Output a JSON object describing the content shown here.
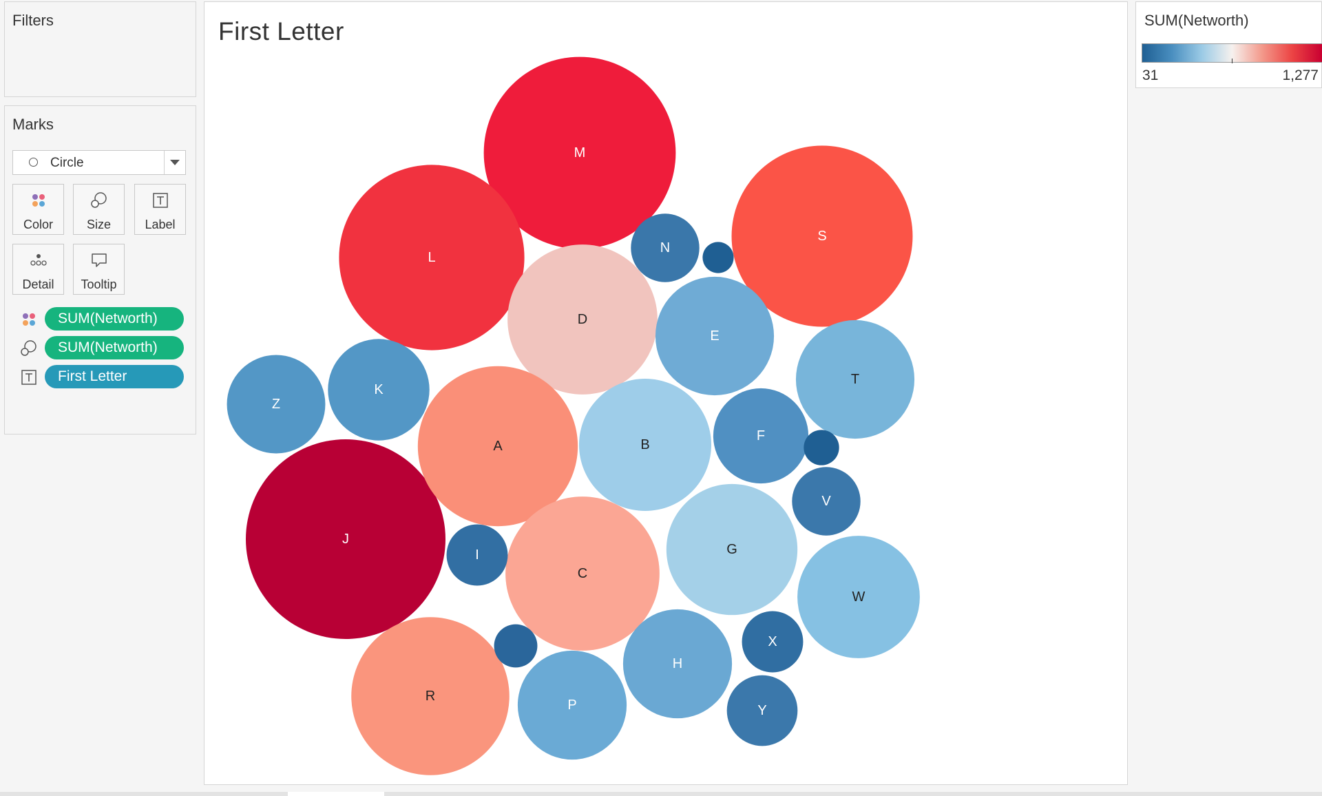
{
  "filters": {
    "title": "Filters"
  },
  "marks": {
    "title": "Marks",
    "mark_type": "Circle",
    "cards": [
      {
        "label": "Color",
        "icon": "color-dots-icon"
      },
      {
        "label": "Size",
        "icon": "size-bubbles-icon"
      },
      {
        "label": "Label",
        "icon": "label-text-icon"
      },
      {
        "label": "Detail",
        "icon": "detail-dots-icon"
      },
      {
        "label": "Tooltip",
        "icon": "tooltip-bubble-icon"
      }
    ],
    "pills": [
      {
        "text": "SUM(Networth)",
        "icon": "color-dots-icon",
        "color": "#16b47e"
      },
      {
        "text": "SUM(Networth)",
        "icon": "size-bubbles-icon",
        "color": "#16b47e"
      },
      {
        "text": "First Letter",
        "icon": "label-text-icon",
        "color": "#2699b8"
      }
    ]
  },
  "viz": {
    "title": "First Letter"
  },
  "legend": {
    "title": "SUM(Networth)",
    "min_label": "31",
    "max_label": "1,277",
    "palette": [
      "#1f5f93",
      "#4a8fc0",
      "#9ccbe6",
      "#f6f1ee",
      "#f3998b",
      "#ec4444",
      "#c90031"
    ]
  },
  "chart_data": {
    "type": "packed-bubble",
    "title": "First Letter",
    "color_measure": "SUM(Networth)",
    "size_measure": "SUM(Networth)",
    "color_range": [
      31,
      1277
    ],
    "bubbles": [
      {
        "label": "M",
        "value": 1180,
        "color": "#ef1c3b"
      },
      {
        "label": "L",
        "value": 1100,
        "color": "#f1323f"
      },
      {
        "label": "S",
        "value": 1050,
        "color": "#fb5447"
      },
      {
        "label": "J",
        "value": 1277,
        "color": "#b80035"
      },
      {
        "label": "D",
        "value": 720,
        "color": "#f1c4be"
      },
      {
        "label": "A",
        "value": 820,
        "color": "#fa8f78"
      },
      {
        "label": "R",
        "value": 800,
        "color": "#fa957d"
      },
      {
        "label": "C",
        "value": 760,
        "color": "#fba694"
      },
      {
        "label": "B",
        "value": 560,
        "color": "#9ecde9"
      },
      {
        "label": "G",
        "value": 550,
        "color": "#a4d0e8"
      },
      {
        "label": "E",
        "value": 450,
        "color": "#6fabd5"
      },
      {
        "label": "T",
        "value": 450,
        "color": "#78b5da"
      },
      {
        "label": "W",
        "value": 480,
        "color": "#86c1e3"
      },
      {
        "label": "Z",
        "value": 310,
        "color": "#5397c6"
      },
      {
        "label": "K",
        "value": 330,
        "color": "#5397c6"
      },
      {
        "label": "F",
        "value": 290,
        "color": "#5090c2"
      },
      {
        "label": "H",
        "value": 380,
        "color": "#6aa8d3"
      },
      {
        "label": "P",
        "value": 380,
        "color": "#6aaad5"
      },
      {
        "label": "N",
        "value": 150,
        "color": "#3a77aa"
      },
      {
        "label": "V",
        "value": 150,
        "color": "#3b78ab"
      },
      {
        "label": "X",
        "value": 120,
        "color": "#306ea2"
      },
      {
        "label": "Y",
        "value": 160,
        "color": "#3b78ab"
      },
      {
        "label": "I",
        "value": 120,
        "color": "#326fa3"
      },
      {
        "label": "",
        "value": 40,
        "color": "#1f5f93"
      },
      {
        "label": "",
        "value": 31,
        "color": "#1f5f93"
      },
      {
        "label": "",
        "value": 60,
        "color": "#2a669b"
      }
    ]
  }
}
